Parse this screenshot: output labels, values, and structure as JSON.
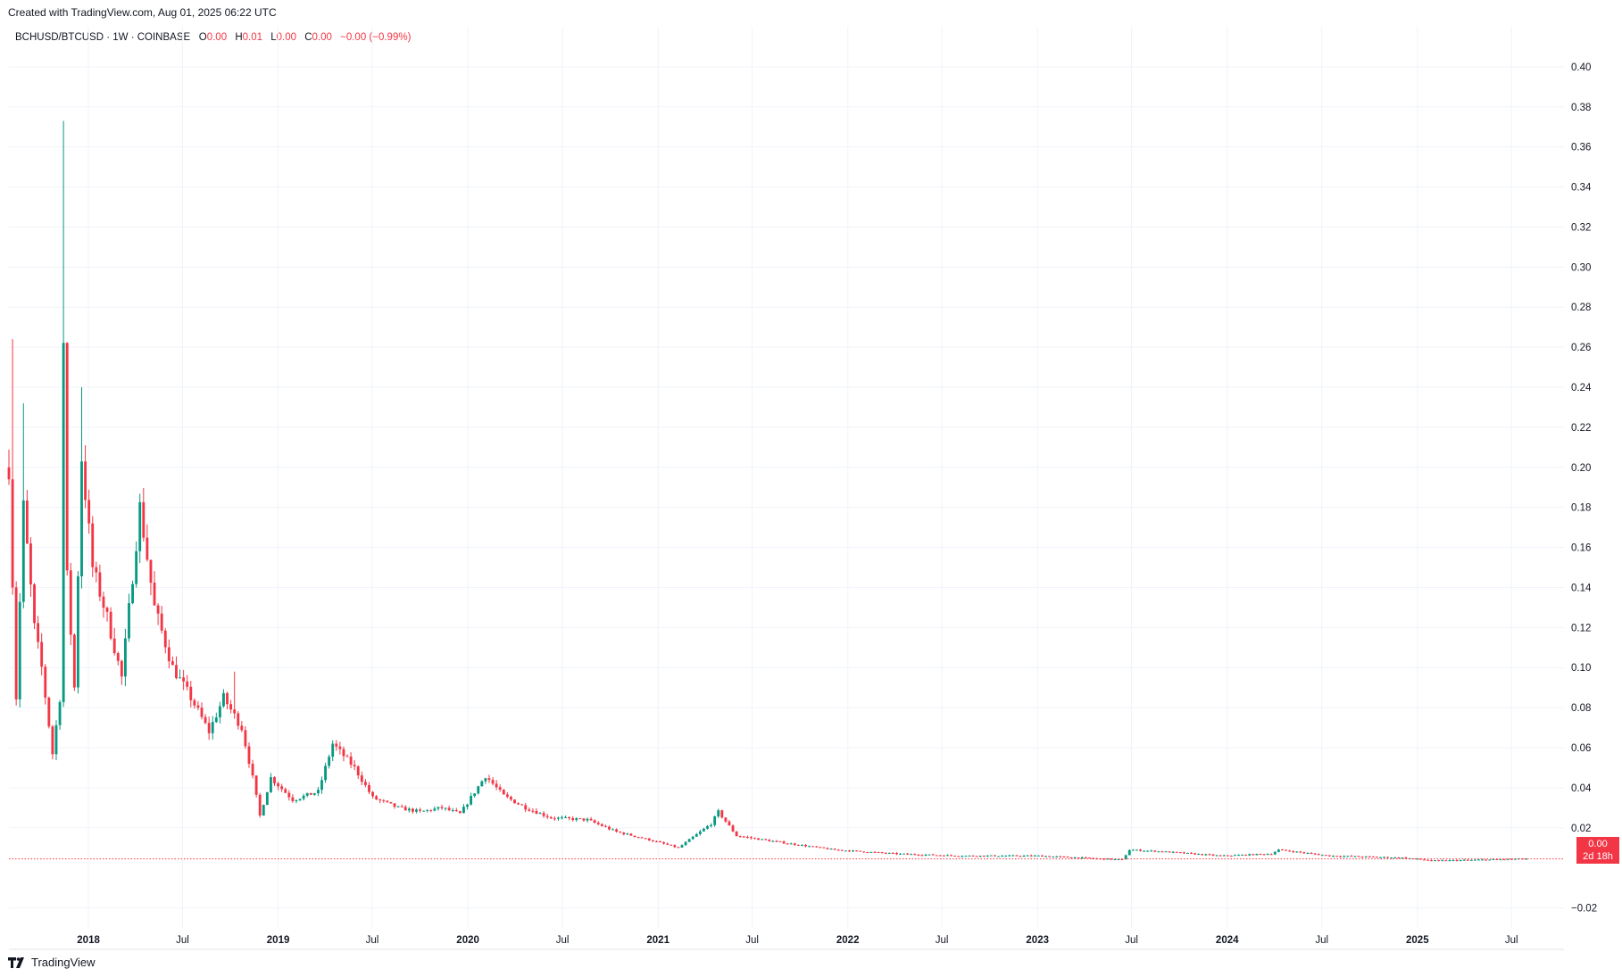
{
  "header": {
    "created_text": "Created with TradingView.com, Aug 01, 2025 06:22 UTC"
  },
  "legend": {
    "symbol": "BCHUSD/BTCUSD · 1W · COINBASE",
    "open_label": "O",
    "open_value": "0.00",
    "high_label": "H",
    "high_value": "0.01",
    "low_label": "L",
    "low_value": "0.00",
    "close_label": "C",
    "close_value": "0.00",
    "change": "−0.00 (−0.99%)"
  },
  "last_price": {
    "value": "0.00",
    "countdown": "2d 18h"
  },
  "footer": {
    "brand": "TradingView"
  },
  "colors": {
    "up": "#089981",
    "down": "#f23645",
    "grid": "#f0f3fa",
    "axis_text": "#131722"
  },
  "chart_data": {
    "type": "candlestick",
    "title": "BCHUSD/BTCUSD",
    "interval": "1W",
    "grid": true,
    "y_axis": {
      "position": "right",
      "ylim": [
        -0.03,
        0.42
      ],
      "ticks": [
        0.4,
        0.38,
        0.36,
        0.34,
        0.32,
        0.3,
        0.28,
        0.26,
        0.24,
        0.22,
        0.2,
        0.18,
        0.16,
        0.14,
        0.12,
        0.1,
        0.08,
        0.06,
        0.04,
        0.02,
        -0.02
      ],
      "tick_labels": [
        "0.40",
        "0.38",
        "0.36",
        "0.34",
        "0.32",
        "0.30",
        "0.28",
        "0.26",
        "0.24",
        "0.22",
        "0.20",
        "0.18",
        "0.16",
        "0.14",
        "0.12",
        "0.10",
        "0.08",
        "0.06",
        "0.04",
        "0.02",
        "−0.02"
      ]
    },
    "x_axis": {
      "range": [
        "2017-08-01",
        "2025-10-10"
      ],
      "ticks": [
        {
          "date": "2018-01-01",
          "label": "2018",
          "bold": true
        },
        {
          "date": "2018-07-01",
          "label": "Jul",
          "bold": false
        },
        {
          "date": "2019-01-01",
          "label": "2019",
          "bold": true
        },
        {
          "date": "2019-07-01",
          "label": "Jul",
          "bold": false
        },
        {
          "date": "2020-01-01",
          "label": "2020",
          "bold": true
        },
        {
          "date": "2020-07-01",
          "label": "Jul",
          "bold": false
        },
        {
          "date": "2021-01-01",
          "label": "2021",
          "bold": true
        },
        {
          "date": "2021-07-01",
          "label": "Jul",
          "bold": false
        },
        {
          "date": "2022-01-01",
          "label": "2022",
          "bold": true
        },
        {
          "date": "2022-07-01",
          "label": "Jul",
          "bold": false
        },
        {
          "date": "2023-01-01",
          "label": "2023",
          "bold": true
        },
        {
          "date": "2023-07-01",
          "label": "Jul",
          "bold": false
        },
        {
          "date": "2024-01-01",
          "label": "2024",
          "bold": true
        },
        {
          "date": "2024-07-01",
          "label": "Jul",
          "bold": false
        },
        {
          "date": "2025-01-01",
          "label": "2025",
          "bold": true
        },
        {
          "date": "2025-07-01",
          "label": "Jul",
          "bold": false
        }
      ]
    },
    "last_price_line": 0.0045,
    "keypoints": [
      {
        "date": "2017-08-01",
        "close": 0.2
      },
      {
        "date": "2017-08-15",
        "close": 0.085
      },
      {
        "date": "2017-08-29",
        "close": 0.18
      },
      {
        "date": "2017-09-19",
        "close": 0.12
      },
      {
        "date": "2017-10-03",
        "close": 0.1
      },
      {
        "date": "2017-10-24",
        "close": 0.057
      },
      {
        "date": "2017-11-07",
        "close": 0.085
      },
      {
        "date": "2017-11-14",
        "close": 0.262
      },
      {
        "date": "2017-11-21",
        "close": 0.145
      },
      {
        "date": "2017-12-05",
        "close": 0.09
      },
      {
        "date": "2017-12-19",
        "close": 0.205
      },
      {
        "date": "2018-01-09",
        "close": 0.15
      },
      {
        "date": "2018-02-06",
        "close": 0.125
      },
      {
        "date": "2018-03-06",
        "close": 0.095
      },
      {
        "date": "2018-04-10",
        "close": 0.18
      },
      {
        "date": "2018-05-08",
        "close": 0.13
      },
      {
        "date": "2018-06-12",
        "close": 0.1
      },
      {
        "date": "2018-07-17",
        "close": 0.085
      },
      {
        "date": "2018-08-21",
        "close": 0.068
      },
      {
        "date": "2018-09-18",
        "close": 0.085
      },
      {
        "date": "2018-10-23",
        "close": 0.07
      },
      {
        "date": "2018-11-13",
        "close": 0.045
      },
      {
        "date": "2018-11-27",
        "close": 0.026
      },
      {
        "date": "2018-12-18",
        "close": 0.045
      },
      {
        "date": "2019-01-29",
        "close": 0.034
      },
      {
        "date": "2019-03-19",
        "close": 0.038
      },
      {
        "date": "2019-04-16",
        "close": 0.062
      },
      {
        "date": "2019-05-28",
        "close": 0.05
      },
      {
        "date": "2019-07-02",
        "close": 0.035
      },
      {
        "date": "2019-08-20",
        "close": 0.03
      },
      {
        "date": "2019-10-01",
        "close": 0.028
      },
      {
        "date": "2019-11-12",
        "close": 0.03
      },
      {
        "date": "2019-12-17",
        "close": 0.027
      },
      {
        "date": "2020-02-04",
        "close": 0.046
      },
      {
        "date": "2020-03-10",
        "close": 0.036
      },
      {
        "date": "2020-04-21",
        "close": 0.03
      },
      {
        "date": "2020-06-09",
        "close": 0.025
      },
      {
        "date": "2020-08-18",
        "close": 0.024
      },
      {
        "date": "2020-10-13",
        "close": 0.018
      },
      {
        "date": "2020-12-15",
        "close": 0.014
      },
      {
        "date": "2021-02-09",
        "close": 0.01
      },
      {
        "date": "2021-04-13",
        "close": 0.022
      },
      {
        "date": "2021-04-27",
        "close": 0.028
      },
      {
        "date": "2021-06-01",
        "close": 0.016
      },
      {
        "date": "2021-08-17",
        "close": 0.013
      },
      {
        "date": "2021-12-07",
        "close": 0.009
      },
      {
        "date": "2022-04-05",
        "close": 0.007
      },
      {
        "date": "2022-08-02",
        "close": 0.006
      },
      {
        "date": "2023-01-03",
        "close": 0.006
      },
      {
        "date": "2023-06-13",
        "close": 0.004
      },
      {
        "date": "2023-06-27",
        "close": 0.009
      },
      {
        "date": "2023-09-05",
        "close": 0.008
      },
      {
        "date": "2023-12-19",
        "close": 0.006
      },
      {
        "date": "2024-03-26",
        "close": 0.007
      },
      {
        "date": "2024-04-09",
        "close": 0.009
      },
      {
        "date": "2024-07-16",
        "close": 0.006
      },
      {
        "date": "2024-12-03",
        "close": 0.005
      },
      {
        "date": "2025-02-04",
        "close": 0.0035
      },
      {
        "date": "2025-08-01",
        "close": 0.0045
      }
    ],
    "wick_spikes": [
      {
        "date": "2017-08-08",
        "high": 0.264
      },
      {
        "date": "2017-08-29",
        "high": 0.232
      },
      {
        "date": "2017-11-14",
        "high": 0.373
      },
      {
        "date": "2017-12-19",
        "high": 0.24
      },
      {
        "date": "2018-04-10",
        "high": 0.186
      },
      {
        "date": "2018-10-09",
        "high": 0.098
      }
    ]
  }
}
